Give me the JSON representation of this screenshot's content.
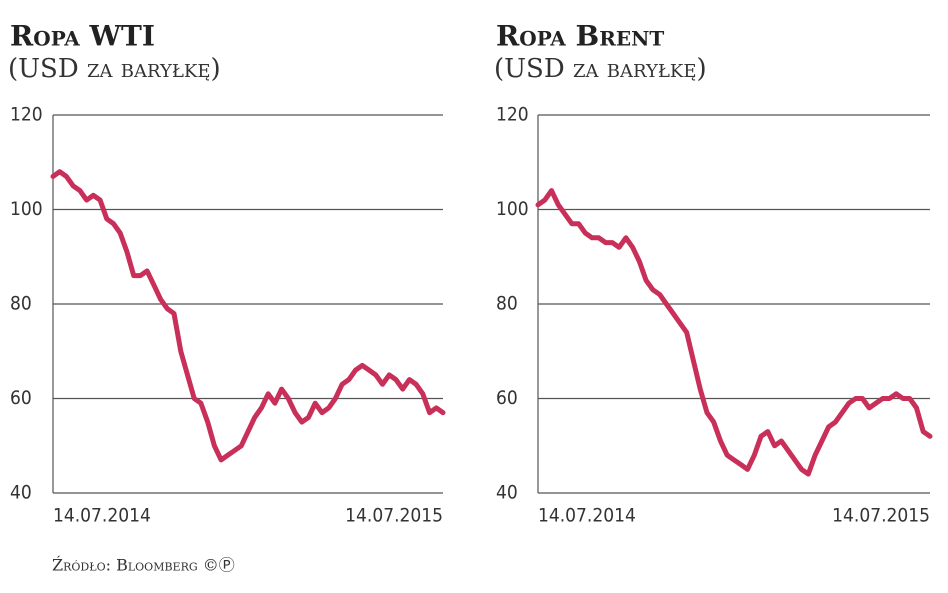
{
  "chart_data": [
    {
      "type": "line",
      "title": "Ropa WTI",
      "subtitle": "(USD za baryłkę)",
      "categories": [
        "14.07.2014",
        null,
        null,
        null,
        null,
        null,
        null,
        null,
        null,
        null,
        null,
        null,
        null,
        null,
        null,
        null,
        null,
        null,
        null,
        null,
        null,
        null,
        null,
        null,
        null,
        null,
        null,
        null,
        null,
        null,
        null,
        null,
        null,
        null,
        null,
        null,
        null,
        null,
        null,
        null,
        null,
        null,
        null,
        null,
        null,
        null,
        null,
        null,
        null,
        null,
        null,
        null,
        null,
        null,
        null,
        null,
        null,
        null,
        "14.07.2015"
      ],
      "values": [
        107,
        108,
        107,
        105,
        104,
        102,
        103,
        102,
        98,
        97,
        95,
        91,
        86,
        86,
        87,
        84,
        81,
        79,
        78,
        70,
        65,
        60,
        59,
        55,
        50,
        47,
        48,
        49,
        50,
        53,
        56,
        58,
        61,
        59,
        62,
        60,
        57,
        55,
        56,
        59,
        57,
        58,
        60,
        63,
        64,
        66,
        67,
        66,
        65,
        63,
        65,
        64,
        62,
        64,
        63,
        61,
        57,
        58,
        57
      ],
      "color": "#c8305a",
      "ylim": [
        40,
        120
      ],
      "yticks": [
        40,
        60,
        80,
        100,
        120
      ],
      "grid": true
    },
    {
      "type": "line",
      "title": "Ropa Brent",
      "subtitle": "(USD za baryłkę)",
      "categories": [
        "14.07.2014",
        null,
        null,
        null,
        null,
        null,
        null,
        null,
        null,
        null,
        null,
        null,
        null,
        null,
        null,
        null,
        null,
        null,
        null,
        null,
        null,
        null,
        null,
        null,
        null,
        null,
        null,
        null,
        null,
        null,
        null,
        null,
        null,
        null,
        null,
        null,
        null,
        null,
        null,
        null,
        null,
        null,
        null,
        null,
        null,
        null,
        null,
        null,
        null,
        null,
        null,
        null,
        null,
        null,
        null,
        null,
        null,
        null,
        "14.07.2015"
      ],
      "values": [
        101,
        102,
        104,
        101,
        99,
        97,
        97,
        95,
        94,
        94,
        93,
        93,
        92,
        94,
        92,
        89,
        85,
        83,
        82,
        80,
        78,
        76,
        74,
        68,
        62,
        57,
        55,
        51,
        48,
        47,
        46,
        45,
        48,
        52,
        53,
        50,
        51,
        49,
        47,
        45,
        44,
        48,
        51,
        54,
        55,
        57,
        59,
        60,
        60,
        58,
        59,
        60,
        60,
        61,
        60,
        60,
        58,
        53,
        52
      ],
      "color": "#c8305a",
      "ylim": [
        40,
        120
      ],
      "yticks": [
        40,
        60,
        80,
        100,
        120
      ],
      "grid": true
    }
  ],
  "source": "Źródło: Bloomberg ©Ⓟ"
}
